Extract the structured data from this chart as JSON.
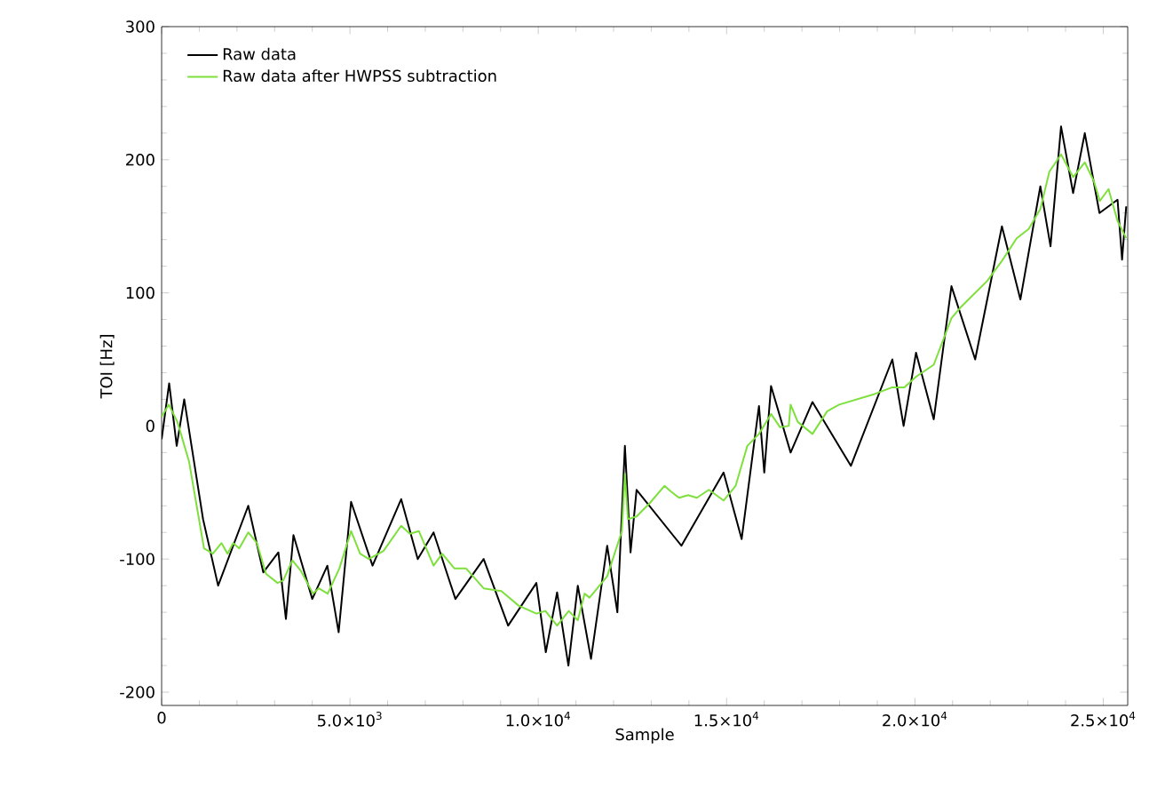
{
  "chart_data": {
    "type": "line",
    "xlabel": "Sample",
    "ylabel": "TOI [Hz]",
    "xlim": [
      0,
      25650
    ],
    "ylim": [
      -210,
      300
    ],
    "xticks": [
      0,
      {
        "value": 5000,
        "label": "5.0×10$^{3}$"
      },
      {
        "value": 10000,
        "label": "1.0×10$^{4}$"
      },
      {
        "value": 15000,
        "label": "1.5×10$^{4}$"
      },
      {
        "value": 20000,
        "label": "2.0×10$^{4}$"
      },
      {
        "value": 25000,
        "label": "2.5×10$^{4}$"
      }
    ],
    "yticks": [
      -200,
      -100,
      0,
      100,
      200,
      300
    ],
    "grid": false,
    "legend": "top left",
    "marker": "none",
    "line_style": "solid",
    "series": [
      {
        "name": "Raw data",
        "color": "#000000",
        "x": [
          0,
          200,
          400,
          600,
          1100,
          1500,
          2300,
          2700,
          3100,
          3300,
          3500,
          4000,
          4400,
          4700,
          5030,
          5600,
          6360,
          6800,
          7220,
          7800,
          8550,
          9200,
          9950,
          10200,
          10500,
          10800,
          11050,
          11400,
          11830,
          12100,
          12300,
          12450,
          12610,
          13800,
          14920,
          15400,
          15860,
          16000,
          16180,
          16700,
          17280,
          18300,
          19400,
          19700,
          20030,
          20500,
          20970,
          21600,
          22310,
          22800,
          23330,
          23600,
          23880,
          24200,
          24510,
          24900,
          25380,
          25500,
          25610
        ],
        "values": [
          -10,
          32,
          -15,
          20,
          -70,
          -120,
          -60,
          -110,
          -95,
          -145,
          -82,
          -130,
          -105,
          -155,
          -57,
          -105,
          -55,
          -100,
          -80,
          -130,
          -100,
          -150,
          -118,
          -170,
          -125,
          -180,
          -120,
          -175,
          -90,
          -140,
          -15,
          -95,
          -48,
          -90,
          -35,
          -85,
          15,
          -35,
          30,
          -20,
          18,
          -30,
          50,
          0,
          55,
          5,
          105,
          50,
          150,
          95,
          180,
          135,
          225,
          175,
          220,
          160,
          170,
          125,
          165
        ]
      },
      {
        "name": "Raw data after HWPSS subtraction",
        "color": "#7ee03c",
        "x": [
          0,
          190,
          420,
          730,
          1125,
          1360,
          1590,
          1750,
          1900,
          2060,
          2300,
          2530,
          2770,
          3080,
          3230,
          3470,
          3700,
          4020,
          4170,
          4410,
          4720,
          5030,
          5270,
          5500,
          5890,
          6360,
          6590,
          6830,
          7220,
          7450,
          7770,
          8080,
          8550,
          9020,
          9480,
          9950,
          10190,
          10500,
          10810,
          11050,
          11230,
          11360,
          11830,
          12220,
          12300,
          12380,
          12610,
          12960,
          13350,
          13510,
          13740,
          13980,
          14210,
          14530,
          14920,
          15240,
          15550,
          15860,
          16180,
          16420,
          16650,
          16700,
          16890,
          17280,
          17670,
          17990,
          18460,
          18930,
          19400,
          19720,
          20030,
          20500,
          20970,
          21210,
          21530,
          21920,
          22310,
          22700,
          23020,
          23330,
          23570,
          23880,
          24200,
          24510,
          24750,
          24910,
          25140,
          25380,
          25610
        ],
        "values": [
          7,
          16,
          3,
          -27,
          -92,
          -96,
          -88,
          -96,
          -88,
          -92,
          -80,
          -88,
          -111,
          -118,
          -116,
          -101,
          -109,
          -126,
          -122,
          -126,
          -107,
          -79,
          -96,
          -100,
          -94,
          -75,
          -81,
          -79,
          -105,
          -96,
          -107,
          -107,
          -122,
          -124,
          -135,
          -141,
          -139,
          -150,
          -139,
          -146,
          -126,
          -129,
          -113,
          -79,
          -36,
          -70,
          -68,
          -58,
          -45,
          -49,
          -54,
          -52,
          -54,
          -48,
          -56,
          -45,
          -15,
          -6,
          9,
          -1,
          0,
          16,
          3,
          -6,
          11,
          16,
          20,
          24,
          29,
          29,
          37,
          46,
          81,
          89,
          98,
          109,
          124,
          141,
          148,
          163,
          191,
          204,
          187,
          198,
          184,
          169,
          178,
          154,
          141
        ]
      }
    ]
  }
}
